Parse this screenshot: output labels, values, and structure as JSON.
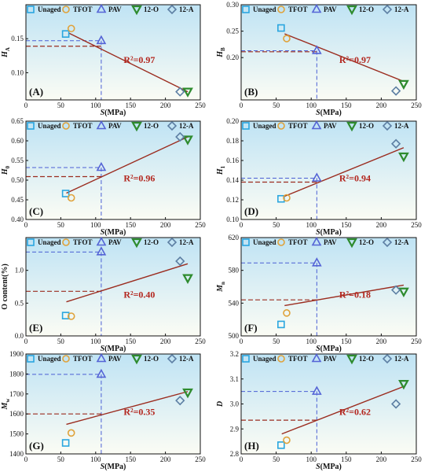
{
  "legend": [
    "Unaged",
    "TFOT",
    "PAV",
    "12-O",
    "12-A"
  ],
  "colors": {
    "Unaged": "#2aa6df",
    "TFOT": "#e0a23a",
    "PAV": "#5564d6",
    "12-O": "#2e8b2e",
    "12-A": "#5d7fa3",
    "fit": "#9b2c1f",
    "ref_h": "#9b2c1f",
    "ref_v": "#4b5fd4",
    "bg_top": "#bfe3f4",
    "bg_bottom": "#fbfcf4"
  },
  "chart_data": [
    {
      "label": "(A)",
      "type": "scatter",
      "ylabel": "HA",
      "ylabel_main": "H",
      "ylabel_sub": "A",
      "xlabel": "S(MPa)",
      "xlim": [
        0,
        250
      ],
      "ylim": [
        0.06,
        0.2
      ],
      "xticks": [
        "0",
        "50",
        "100",
        "150",
        "200",
        "250"
      ],
      "yticks": [
        "0.10",
        "0.15"
      ],
      "ytick_values": [
        0.1,
        0.15
      ],
      "points": [
        {
          "series": "Unaged",
          "x": 57,
          "y": 0.157
        },
        {
          "series": "TFOT",
          "x": 65,
          "y": 0.165
        },
        {
          "series": "PAV",
          "x": 108,
          "y": 0.147
        },
        {
          "series": "12-O",
          "x": 232,
          "y": 0.072
        },
        {
          "series": "12-A",
          "x": 221,
          "y": 0.072
        }
      ],
      "fit": {
        "x": [
          62,
          232
        ],
        "y": [
          0.158,
          0.072
        ]
      },
      "r2": "R²=0.97",
      "ref_lines": {
        "x": 108,
        "y": [
          0.147,
          0.139
        ]
      }
    },
    {
      "label": "(B)",
      "type": "scatter",
      "ylabel": "HB",
      "ylabel_main": "H",
      "ylabel_sub": "B",
      "xlabel": "S(MPa)",
      "xlim": [
        0,
        250
      ],
      "ylim": [
        0.12,
        0.3
      ],
      "xticks": [
        "0",
        "50",
        "100",
        "150",
        "200",
        "250"
      ],
      "yticks": [
        "0.20",
        "0.25",
        "0.30"
      ],
      "ytick_values": [
        0.2,
        0.25,
        0.3
      ],
      "points": [
        {
          "series": "Unaged",
          "x": 57,
          "y": 0.256
        },
        {
          "series": "TFOT",
          "x": 65,
          "y": 0.236
        },
        {
          "series": "PAV",
          "x": 108,
          "y": 0.213
        },
        {
          "series": "12-O",
          "x": 232,
          "y": 0.15
        },
        {
          "series": "12-A",
          "x": 221,
          "y": 0.137
        }
      ],
      "fit": {
        "x": [
          62,
          232
        ],
        "y": [
          0.245,
          0.155
        ]
      },
      "r2": "R²=0.97",
      "ref_lines": {
        "x": 108,
        "y": [
          0.213,
          0.211
        ]
      }
    },
    {
      "label": "(C)",
      "type": "scatter",
      "ylabel": "H0",
      "ylabel_main": "H",
      "ylabel_sub": "0",
      "xlabel": "S(MPa)",
      "xlim": [
        0,
        250
      ],
      "ylim": [
        0.4,
        0.65
      ],
      "xticks": [
        "0",
        "50",
        "100",
        "150",
        "200",
        "250"
      ],
      "yticks": [
        "0.40",
        "0.45",
        "0.50",
        "0.55",
        "0.60",
        "0.65"
      ],
      "ytick_values": [
        0.4,
        0.45,
        0.5,
        0.55,
        0.6,
        0.65
      ],
      "points": [
        {
          "series": "Unaged",
          "x": 57,
          "y": 0.466
        },
        {
          "series": "TFOT",
          "x": 65,
          "y": 0.455
        },
        {
          "series": "PAV",
          "x": 108,
          "y": 0.532
        },
        {
          "series": "12-O",
          "x": 232,
          "y": 0.603
        },
        {
          "series": "12-A",
          "x": 221,
          "y": 0.61
        }
      ],
      "fit": {
        "x": [
          58,
          232
        ],
        "y": [
          0.467,
          0.61
        ]
      },
      "r2": "R²=0.96",
      "ref_lines": {
        "x": 108,
        "y": [
          0.532,
          0.509
        ]
      }
    },
    {
      "label": "(D)",
      "type": "scatter",
      "ylabel": "H1",
      "ylabel_main": "H",
      "ylabel_sub": "1",
      "xlabel": "S(MPa)",
      "xlim": [
        0,
        250
      ],
      "ylim": [
        0.1,
        0.2
      ],
      "xticks": [
        "0",
        "50",
        "100",
        "150",
        "200",
        "250"
      ],
      "yticks": [
        "0.10",
        "0.12",
        "0.14",
        "0.16",
        "0.18",
        "0.20"
      ],
      "ytick_values": [
        0.1,
        0.12,
        0.14,
        0.16,
        0.18,
        0.2
      ],
      "points": [
        {
          "series": "Unaged",
          "x": 57,
          "y": 0.121
        },
        {
          "series": "TFOT",
          "x": 65,
          "y": 0.122
        },
        {
          "series": "PAV",
          "x": 108,
          "y": 0.142
        },
        {
          "series": "12-O",
          "x": 232,
          "y": 0.164
        },
        {
          "series": "12-A",
          "x": 221,
          "y": 0.177
        }
      ],
      "fit": {
        "x": [
          60,
          232
        ],
        "y": [
          0.123,
          0.173
        ]
      },
      "r2": "R²=0.94",
      "ref_lines": {
        "x": 108,
        "y": [
          0.142,
          0.138
        ]
      }
    },
    {
      "label": "(E)",
      "type": "scatter",
      "ylabel": "O content(%)",
      "ylabel_main": "O content(%)",
      "ylabel_sub": "",
      "xlabel": "S(MPa)",
      "xlim": [
        0,
        250
      ],
      "ylim": [
        0,
        1.5
      ],
      "xticks": [
        "0",
        "50",
        "100",
        "150",
        "200",
        "250"
      ],
      "yticks": [
        "0.0",
        "0.5",
        "1.0"
      ],
      "ytick_values": [
        0,
        0.5,
        1.0
      ],
      "points": [
        {
          "series": "Unaged",
          "x": 57,
          "y": 0.31
        },
        {
          "series": "TFOT",
          "x": 65,
          "y": 0.3
        },
        {
          "series": "PAV",
          "x": 108,
          "y": 1.28
        },
        {
          "series": "12-O",
          "x": 232,
          "y": 0.88
        },
        {
          "series": "12-A",
          "x": 221,
          "y": 1.14
        }
      ],
      "fit": {
        "x": [
          58,
          232
        ],
        "y": [
          0.52,
          1.1
        ]
      },
      "r2": "R²=0.40",
      "ref_lines": {
        "x": 108,
        "y": [
          1.28,
          0.68
        ]
      }
    },
    {
      "label": "(F)",
      "type": "scatter",
      "ylabel": "Mn",
      "ylabel_main": "M",
      "ylabel_sub": "n",
      "xlabel": "S(MPa)",
      "xlim": [
        0,
        250
      ],
      "ylim": [
        500,
        620
      ],
      "xticks": [
        "0",
        "50",
        "100",
        "150",
        "200",
        "250"
      ],
      "yticks": [
        "500",
        "540",
        "580",
        "620"
      ],
      "ytick_values": [
        500,
        540,
        580,
        620
      ],
      "points": [
        {
          "series": "Unaged",
          "x": 57,
          "y": 514
        },
        {
          "series": "TFOT",
          "x": 65,
          "y": 528
        },
        {
          "series": "PAV",
          "x": 108,
          "y": 589
        },
        {
          "series": "12-O",
          "x": 232,
          "y": 554
        },
        {
          "series": "12-A",
          "x": 221,
          "y": 556
        }
      ],
      "fit": {
        "x": [
          62,
          232
        ],
        "y": [
          537,
          562
        ]
      },
      "r2": "R²=0.18",
      "ref_lines": {
        "x": 108,
        "y": [
          589,
          544
        ]
      }
    },
    {
      "label": "(G)",
      "type": "scatter",
      "ylabel": "Mw",
      "ylabel_main": "M",
      "ylabel_sub": "w",
      "xlabel": "S(MPa)",
      "xlim": [
        0,
        250
      ],
      "ylim": [
        1400,
        1900
      ],
      "xticks": [
        "0",
        "50",
        "100",
        "150",
        "200",
        "250"
      ],
      "yticks": [
        "1400",
        "1500",
        "1600",
        "1700",
        "1800",
        "1900"
      ],
      "ytick_values": [
        1400,
        1500,
        1600,
        1700,
        1800,
        1900
      ],
      "points": [
        {
          "series": "Unaged",
          "x": 57,
          "y": 1455
        },
        {
          "series": "TFOT",
          "x": 65,
          "y": 1505
        },
        {
          "series": "PAV",
          "x": 108,
          "y": 1798
        },
        {
          "series": "12-O",
          "x": 232,
          "y": 1707
        },
        {
          "series": "12-A",
          "x": 221,
          "y": 1667
        }
      ],
      "fit": {
        "x": [
          58,
          232
        ],
        "y": [
          1548,
          1712
        ]
      },
      "r2": "R²=0.35",
      "ref_lines": {
        "x": 108,
        "y": [
          1798,
          1600
        ]
      }
    },
    {
      "label": "(H)",
      "type": "scatter",
      "ylabel": "D",
      "ylabel_main": "D",
      "ylabel_sub": "",
      "xlabel": "S(MPa)",
      "xlim": [
        0,
        250
      ],
      "ylim": [
        2.8,
        3.2
      ],
      "xticks": [
        "0",
        "50",
        "100",
        "150",
        "200",
        "250"
      ],
      "yticks": [
        "2.8",
        "2.9",
        "3.0",
        "3.1",
        "3.2"
      ],
      "ytick_values": [
        2.8,
        2.9,
        3.0,
        3.1,
        3.2
      ],
      "points": [
        {
          "series": "Unaged",
          "x": 57,
          "y": 2.835
        },
        {
          "series": "TFOT",
          "x": 65,
          "y": 2.855
        },
        {
          "series": "PAV",
          "x": 108,
          "y": 3.05
        },
        {
          "series": "12-O",
          "x": 232,
          "y": 3.08
        },
        {
          "series": "12-A",
          "x": 221,
          "y": 3.0
        }
      ],
      "fit": {
        "x": [
          58,
          232
        ],
        "y": [
          2.88,
          3.07
        ]
      },
      "r2": "R²=0.62",
      "ref_lines": {
        "x": 108,
        "y": [
          3.05,
          2.935
        ]
      }
    }
  ]
}
